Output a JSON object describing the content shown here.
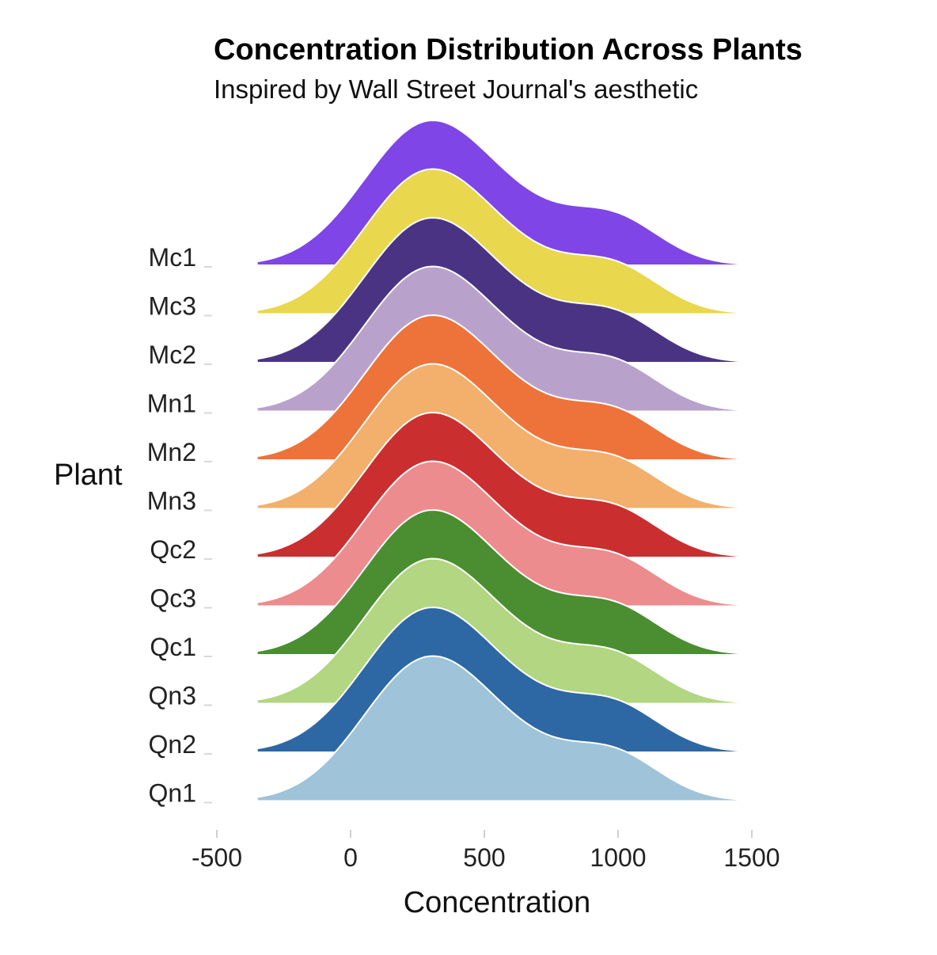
{
  "chart_data": {
    "type": "ridgeline",
    "title": "Concentration Distribution Across Plants",
    "subtitle": "Inspired by Wall Street Journal's aesthetic",
    "xlabel": "Concentration",
    "ylabel": "Plant",
    "xlim": [
      -500,
      1500
    ],
    "xticks": [
      "-500",
      "0",
      "500",
      "1000",
      "1500"
    ],
    "xtick_values": [
      -500,
      0,
      500,
      1000,
      1500
    ],
    "density_range": [
      -350,
      1450
    ],
    "series": [
      {
        "name": "Mc1",
        "color": "#7f45e6",
        "peak": 262,
        "shoulder": 1000
      },
      {
        "name": "Mc3",
        "color": "#e9d74e",
        "peak": 262,
        "shoulder": 1000
      },
      {
        "name": "Mc2",
        "color": "#4b3384",
        "peak": 262,
        "shoulder": 1000
      },
      {
        "name": "Mn1",
        "color": "#b8a2cb",
        "peak": 262,
        "shoulder": 1000
      },
      {
        "name": "Mn2",
        "color": "#ee733a",
        "peak": 262,
        "shoulder": 1000
      },
      {
        "name": "Mn3",
        "color": "#f2b06c",
        "peak": 262,
        "shoulder": 1000
      },
      {
        "name": "Qc2",
        "color": "#cb2e2f",
        "peak": 262,
        "shoulder": 1000
      },
      {
        "name": "Qc3",
        "color": "#ec8c8e",
        "peak": 262,
        "shoulder": 1000
      },
      {
        "name": "Qc1",
        "color": "#4a8e31",
        "peak": 262,
        "shoulder": 1000
      },
      {
        "name": "Qn3",
        "color": "#b2d681",
        "peak": 262,
        "shoulder": 1000
      },
      {
        "name": "Qn2",
        "color": "#2d68a4",
        "peak": 262,
        "shoulder": 1000
      },
      {
        "name": "Qn1",
        "color": "#9fc3d9",
        "peak": 262,
        "shoulder": 1000
      }
    ]
  }
}
